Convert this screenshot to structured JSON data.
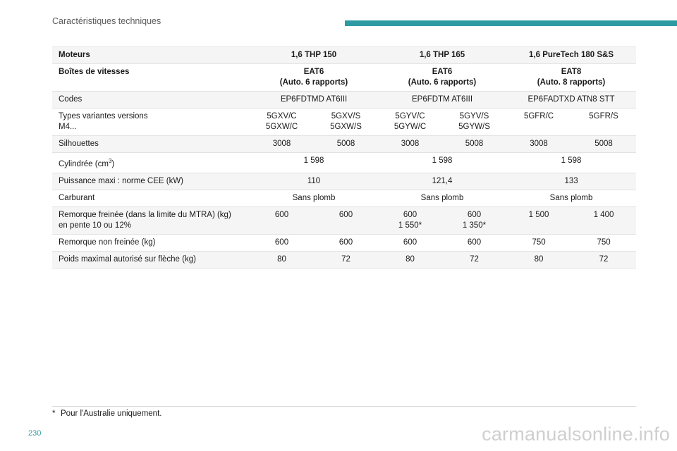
{
  "header": {
    "title": "Caractéristiques techniques"
  },
  "table": {
    "rows": [
      {
        "label": "Moteurs",
        "cells": [
          "1,6 THP 150",
          "1,6 THP 165",
          "1,6 PureTech 180 S&S"
        ]
      },
      {
        "label": "Boîtes de vitesses",
        "cells": [
          [
            "EAT6",
            "(Auto. 6 rapports)"
          ],
          [
            "EAT6",
            "(Auto. 6 rapports)"
          ],
          [
            "EAT8",
            "(Auto. 8 rapports)"
          ]
        ]
      },
      {
        "label": "Codes",
        "cells": [
          "EP6FDTMD AT6III",
          "EP6FDTM AT6III",
          "EP6FADTXD ATN8 STT"
        ]
      },
      {
        "label": [
          "Types variantes versions",
          "M4..."
        ],
        "cells": [
          [
            "5GXV/C",
            "5GXW/C"
          ],
          [
            "5GXV/S",
            "5GXW/S"
          ],
          [
            "5GYV/C",
            "5GYW/C"
          ],
          [
            "5GYV/S",
            "5GYW/S"
          ],
          "5GFR/C",
          "5GFR/S"
        ]
      },
      {
        "label": "Silhouettes",
        "cells": [
          "3008",
          "5008",
          "3008",
          "5008",
          "3008",
          "5008"
        ]
      },
      {
        "label": "Cylindrée (cm",
        "label_sup": "3",
        "label_end": ")",
        "cells": [
          "1 598",
          "1 598",
          "1 598"
        ]
      },
      {
        "label": "Puissance maxi : norme CEE (kW)",
        "cells": [
          "110",
          "121,4",
          "133"
        ]
      },
      {
        "label": "Carburant",
        "cells": [
          "Sans plomb",
          "Sans plomb",
          "Sans plomb"
        ]
      },
      {
        "label": [
          "Remorque freinée (dans la limite du MTRA) (kg)",
          "en pente 10 ou 12%"
        ],
        "cells": [
          "600",
          "600",
          [
            "600",
            "1 550*"
          ],
          [
            "600",
            "1 350*"
          ],
          "1 500",
          "1 400"
        ]
      },
      {
        "label": "Remorque non freinée (kg)",
        "cells": [
          "600",
          "600",
          "600",
          "600",
          "750",
          "750"
        ]
      },
      {
        "label": "Poids maximal autorisé sur flèche (kg)",
        "cells": [
          "80",
          "72",
          "80",
          "72",
          "80",
          "72"
        ]
      }
    ]
  },
  "footnote": {
    "mark": "*",
    "text": "Pour l'Australie uniquement."
  },
  "page_number": "230",
  "watermark": "carmanualsonline.info"
}
